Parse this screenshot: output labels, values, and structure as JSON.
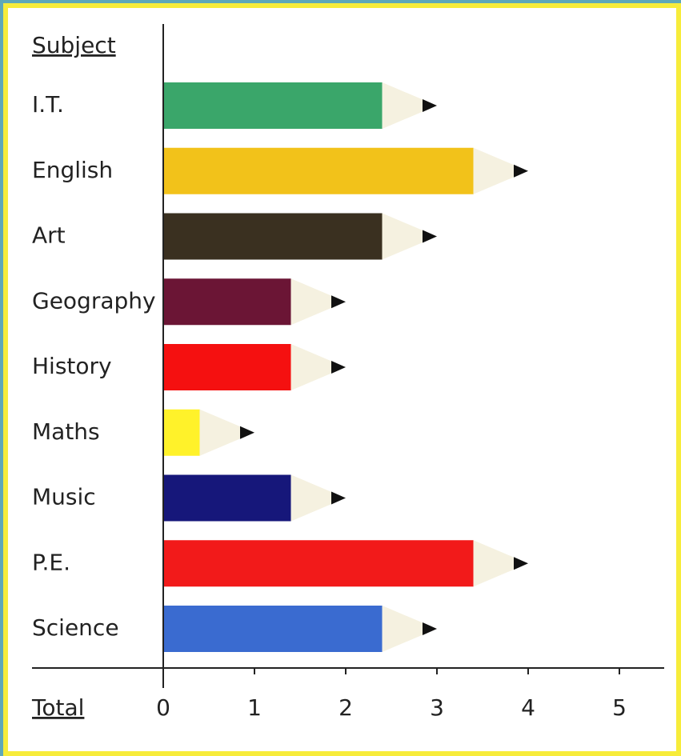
{
  "chart_data": {
    "type": "bar",
    "orientation": "horizontal",
    "category_axis_label": "Subject",
    "value_axis_label": "Total",
    "categories": [
      "I.T.",
      "English",
      "Art",
      "Geography",
      "History",
      "Maths",
      "Music",
      "P.E.",
      "Science"
    ],
    "values": [
      3,
      4,
      3,
      2,
      2,
      1,
      2,
      4,
      3
    ],
    "colors": [
      "#3aa66a",
      "#f2c21a",
      "#3a3020",
      "#6b1535",
      "#f51010",
      "#fff22a",
      "#16177a",
      "#f21a1a",
      "#3a6bd0"
    ],
    "xlim": [
      0,
      5
    ],
    "xticks": [
      0,
      1,
      2,
      3,
      4,
      5
    ]
  }
}
